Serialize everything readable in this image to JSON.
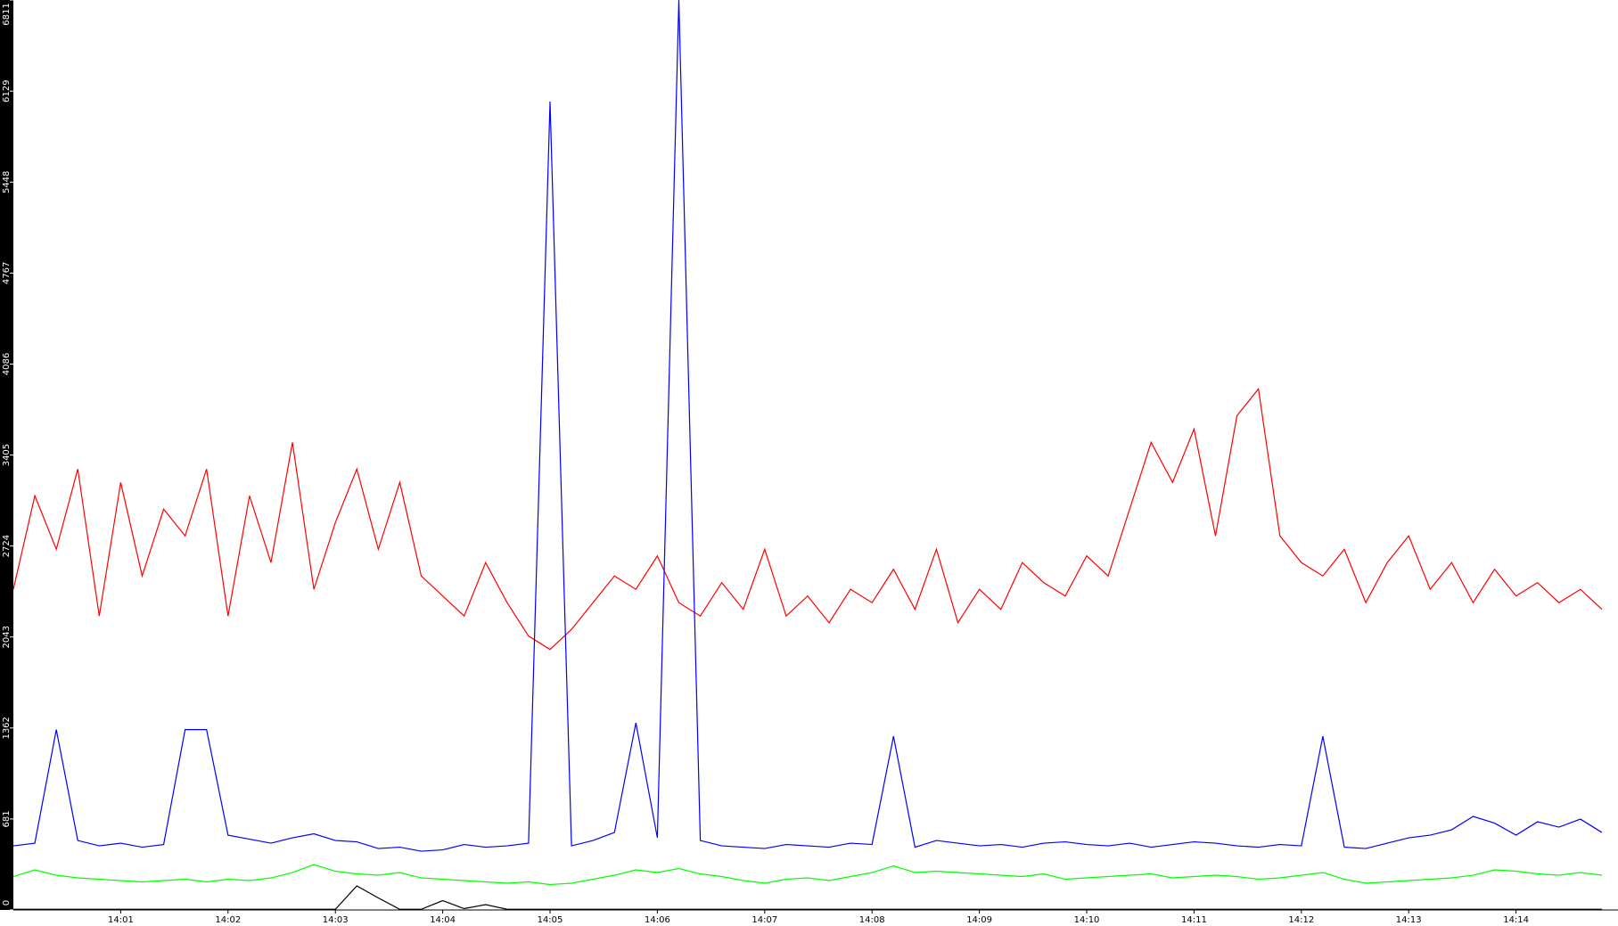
{
  "chart_data": {
    "type": "line",
    "x": [
      0,
      0.2,
      0.4,
      0.6,
      0.8,
      1,
      1.2,
      1.4,
      1.6,
      1.8,
      2,
      2.2,
      2.4,
      2.6,
      2.8,
      3,
      3.2,
      3.4,
      3.6,
      3.8,
      4,
      4.2,
      4.4,
      4.6,
      4.8,
      5,
      5.2,
      5.4,
      5.6,
      5.8,
      6,
      6.2,
      6.4,
      6.6,
      6.8,
      7,
      7.2,
      7.4,
      7.6,
      7.8,
      8,
      8.2,
      8.4,
      8.6,
      8.8,
      9,
      9.2,
      9.4,
      9.6,
      9.8,
      10,
      10.2,
      10.4,
      10.6,
      10.8,
      11,
      11.2,
      11.4,
      11.6,
      11.8,
      12,
      12.2,
      12.4,
      12.6,
      12.8,
      13,
      13.2,
      13.4,
      13.6,
      13.8,
      14,
      14.2,
      14.4,
      14.6,
      14.8
    ],
    "xlim": [
      0,
      14.95
    ],
    "xticks": [
      {
        "value": 1,
        "label": "14:01"
      },
      {
        "value": 2,
        "label": "14:02"
      },
      {
        "value": 3,
        "label": "14:03"
      },
      {
        "value": 4,
        "label": "14:04"
      },
      {
        "value": 5,
        "label": "14:05"
      },
      {
        "value": 6,
        "label": "14:06"
      },
      {
        "value": 7,
        "label": "14:07"
      },
      {
        "value": 8,
        "label": "14:08"
      },
      {
        "value": 9,
        "label": "14:09"
      },
      {
        "value": 10,
        "label": "14:10"
      },
      {
        "value": 11,
        "label": "14:11"
      },
      {
        "value": 12,
        "label": "14:12"
      },
      {
        "value": 13,
        "label": "14:13"
      },
      {
        "value": 14,
        "label": "14:14"
      }
    ],
    "ylim": [
      0,
      6811
    ],
    "yticks": [
      0,
      681,
      1362,
      2043,
      2724,
      3405,
      4086,
      4767,
      5448,
      6129,
      6811
    ],
    "series": [
      {
        "color": "#ff0000",
        "values": [
          2400,
          3100,
          2700,
          3300,
          2200,
          3200,
          2500,
          3000,
          2800,
          3300,
          2200,
          3100,
          2600,
          3500,
          2400,
          2900,
          3300,
          2700,
          3200,
          2500,
          2350,
          2200,
          2600,
          2300,
          2050,
          1950,
          2100,
          2300,
          2500,
          2400,
          2650,
          2300,
          2200,
          2450,
          2250,
          2700,
          2200,
          2350,
          2150,
          2400,
          2300,
          2550,
          2250,
          2700,
          2150,
          2400,
          2250,
          2600,
          2450,
          2350,
          2650,
          2500,
          3000,
          3500,
          3200,
          3600,
          2800,
          3700,
          3900,
          2800,
          2600,
          2500,
          2700,
          2300,
          2600,
          2800,
          2400,
          2600,
          2300,
          2550,
          2350,
          2450,
          2300,
          2400,
          2250
        ]
      },
      {
        "color": "#0000ff",
        "values": [
          480,
          500,
          1350,
          520,
          480,
          500,
          470,
          490,
          1350,
          1350,
          560,
          530,
          500,
          540,
          570,
          520,
          510,
          460,
          470,
          440,
          450,
          490,
          470,
          480,
          500,
          6050,
          480,
          520,
          580,
          1400,
          540,
          6811,
          520,
          480,
          470,
          460,
          490,
          480,
          470,
          500,
          490,
          1300,
          470,
          520,
          500,
          480,
          490,
          470,
          500,
          510,
          490,
          480,
          500,
          470,
          490,
          510,
          500,
          480,
          470,
          490,
          480,
          1300,
          470,
          460,
          500,
          540,
          560,
          600,
          700,
          650,
          560,
          660,
          620,
          680,
          580
        ]
      },
      {
        "color": "#00ff00",
        "values": [
          250,
          300,
          260,
          240,
          230,
          220,
          210,
          220,
          230,
          210,
          230,
          220,
          240,
          280,
          340,
          290,
          270,
          260,
          280,
          240,
          230,
          220,
          210,
          200,
          210,
          190,
          200,
          230,
          260,
          300,
          280,
          310,
          270,
          250,
          220,
          200,
          230,
          240,
          220,
          250,
          280,
          330,
          280,
          290,
          280,
          270,
          260,
          250,
          270,
          230,
          240,
          250,
          260,
          270,
          240,
          250,
          260,
          250,
          230,
          240,
          260,
          280,
          230,
          200,
          210,
          220,
          230,
          240,
          260,
          300,
          290,
          270,
          260,
          280,
          260
        ]
      },
      {
        "color": "#000000",
        "values": [
          5,
          5,
          5,
          5,
          5,
          5,
          5,
          5,
          5,
          5,
          5,
          5,
          5,
          5,
          5,
          5,
          180,
          90,
          5,
          5,
          70,
          10,
          40,
          5,
          5,
          5,
          5,
          5,
          5,
          5,
          5,
          5,
          5,
          5,
          5,
          5,
          5,
          5,
          5,
          5,
          5,
          5,
          5,
          5,
          5,
          5,
          5,
          5,
          5,
          5,
          5,
          5,
          5,
          5,
          5,
          5,
          5,
          5,
          5,
          5,
          5,
          5,
          5,
          5,
          5,
          5,
          5,
          5,
          5,
          5,
          5,
          5,
          5,
          5,
          5
        ]
      }
    ]
  }
}
